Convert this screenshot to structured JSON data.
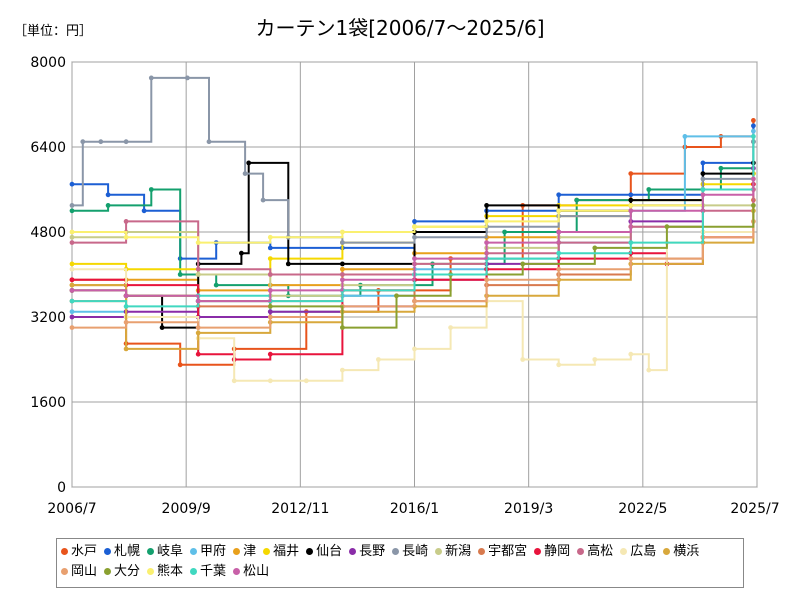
{
  "unit_label": "［単位：円］",
  "chart_data": {
    "type": "line",
    "title": "カーテン1袋[2006/7～2025/6]",
    "xlabel": "",
    "ylabel": "",
    "x_ticks": [
      "2006/7",
      "2009/9",
      "2012/11",
      "2016/1",
      "2019/3",
      "2022/5",
      "2025/7"
    ],
    "y_ticks": [
      0,
      1600,
      3200,
      4800,
      6400,
      8000
    ],
    "ylim": [
      0,
      8000
    ],
    "grid": true,
    "legend_position": "bottom",
    "series": [
      {
        "name": "水戸",
        "color": "#e8541c",
        "x": [
          2006.5,
          2008.0,
          2009.5,
          2011.0,
          2013.0,
          2015.0,
          2017.0,
          2019.0,
          2020.5,
          2022.0,
          2023.5,
          2024.5,
          2025.4
        ],
        "values": [
          3900,
          2700,
          2300,
          2600,
          3300,
          3700,
          4300,
          5300,
          5400,
          5900,
          6400,
          6600,
          6900
        ]
      },
      {
        "name": "札幌",
        "color": "#1c5fd4",
        "x": [
          2006.5,
          2007.5,
          2008.5,
          2009.5,
          2010.5,
          2012.0,
          2014.0,
          2016.0,
          2018.0,
          2020.0,
          2022.0,
          2024.0,
          2025.4
        ],
        "values": [
          5700,
          5500,
          5200,
          4300,
          4600,
          4500,
          4500,
          5000,
          5200,
          5500,
          5500,
          6100,
          6800
        ]
      },
      {
        "name": "岐阜",
        "color": "#14a06e",
        "x": [
          2006.5,
          2007.5,
          2008.7,
          2009.5,
          2010.5,
          2012.5,
          2014.5,
          2016.5,
          2018.5,
          2020.5,
          2022.5,
          2024.5,
          2025.4
        ],
        "values": [
          5200,
          5300,
          5600,
          4000,
          3800,
          3600,
          3800,
          4200,
          4800,
          5400,
          5600,
          6000,
          6500
        ]
      },
      {
        "name": "甲府",
        "color": "#5fbfe8",
        "x": [
          2006.5,
          2008.0,
          2010.0,
          2012.0,
          2014.0,
          2016.0,
          2018.0,
          2020.0,
          2022.0,
          2023.5,
          2025.4
        ],
        "values": [
          3300,
          3200,
          3500,
          3300,
          3600,
          4100,
          4300,
          4600,
          5200,
          6600,
          6700
        ]
      },
      {
        "name": "津",
        "color": "#e8a01c",
        "x": [
          2006.5,
          2008.0,
          2010.0,
          2012.0,
          2014.0,
          2016.0,
          2018.0,
          2020.0,
          2022.0,
          2024.0,
          2025.4
        ],
        "values": [
          3800,
          3900,
          3700,
          3800,
          4100,
          4400,
          4700,
          5100,
          5300,
          5600,
          5900
        ]
      },
      {
        "name": "福井",
        "color": "#f5d800",
        "x": [
          2006.5,
          2008.0,
          2010.0,
          2012.0,
          2014.0,
          2016.0,
          2018.0,
          2020.0,
          2022.0,
          2024.0,
          2025.4
        ],
        "values": [
          4200,
          4100,
          4000,
          4300,
          4600,
          4900,
          5100,
          5300,
          5400,
          5700,
          5900
        ]
      },
      {
        "name": "仙台",
        "color": "#000000",
        "x": [
          2006.5,
          2008.0,
          2009.0,
          2010.0,
          2011.2,
          2011.4,
          2012.5,
          2014.0,
          2016.0,
          2018.0,
          2020.0,
          2022.0,
          2024.0,
          2025.4
        ],
        "values": [
          3700,
          3600,
          3000,
          4200,
          4400,
          6100,
          4200,
          4200,
          4800,
          5300,
          5200,
          5400,
          5900,
          6100
        ]
      },
      {
        "name": "長野",
        "color": "#8a2ca8",
        "x": [
          2006.5,
          2008.0,
          2010.0,
          2012.0,
          2014.0,
          2016.0,
          2018.0,
          2020.0,
          2022.0,
          2024.0,
          2025.4
        ],
        "values": [
          3200,
          3300,
          3200,
          3300,
          3400,
          3900,
          4200,
          4800,
          5000,
          5600,
          6000
        ]
      },
      {
        "name": "長崎",
        "color": "#8a96a8",
        "x": [
          2006.5,
          2006.8,
          2007.3,
          2008.0,
          2008.7,
          2009.7,
          2010.3,
          2011.3,
          2011.8,
          2012.5,
          2014.0,
          2016.0,
          2018.0,
          2020.0,
          2022.0,
          2024.0,
          2025.4
        ],
        "values": [
          5300,
          6500,
          6500,
          6500,
          7700,
          7700,
          6500,
          5900,
          5400,
          4700,
          4600,
          4700,
          4900,
          5100,
          5300,
          5800,
          6500
        ]
      },
      {
        "name": "新潟",
        "color": "#c8cc8a",
        "x": [
          2006.5,
          2008.0,
          2010.0,
          2012.0,
          2014.0,
          2016.0,
          2018.0,
          2020.0,
          2022.0,
          2024.0,
          2025.4
        ],
        "values": [
          4700,
          4800,
          4000,
          3600,
          3800,
          4200,
          4500,
          4700,
          4900,
          5300,
          5600
        ]
      },
      {
        "name": "宇都宮",
        "color": "#d87a4e",
        "x": [
          2006.5,
          2008.0,
          2010.0,
          2012.0,
          2014.0,
          2016.0,
          2018.0,
          2020.0,
          2022.0,
          2024.0,
          2025.4
        ],
        "values": [
          3500,
          3600,
          3400,
          3500,
          3700,
          3500,
          3800,
          4000,
          4300,
          4800,
          5400
        ]
      },
      {
        "name": "静岡",
        "color": "#e8143c",
        "x": [
          2006.5,
          2008.0,
          2010.0,
          2011.0,
          2012.0,
          2014.0,
          2016.0,
          2018.0,
          2020.0,
          2022.0,
          2023.0,
          2024.0,
          2025.4
        ],
        "values": [
          3900,
          3800,
          2500,
          2400,
          2500,
          3700,
          3900,
          4100,
          4300,
          4400,
          4200,
          4700,
          5700
        ]
      },
      {
        "name": "高松",
        "color": "#c8688a",
        "x": [
          2006.5,
          2008.0,
          2010.0,
          2012.0,
          2014.0,
          2016.0,
          2018.0,
          2020.0,
          2022.0,
          2024.0,
          2025.4
        ],
        "values": [
          4600,
          5000,
          4100,
          4000,
          4000,
          4200,
          4400,
          4600,
          4900,
          5200,
          5600
        ]
      },
      {
        "name": "広島",
        "color": "#f5e8b4",
        "x": [
          2006.5,
          2008.0,
          2010.0,
          2011.0,
          2012.0,
          2013.0,
          2014.0,
          2015.0,
          2016.0,
          2017.0,
          2018.0,
          2019.0,
          2020.0,
          2021.0,
          2022.0,
          2022.5,
          2023.0,
          2024.0,
          2025.4
        ],
        "values": [
          4100,
          3200,
          2800,
          2000,
          2000,
          2000,
          2200,
          2400,
          2600,
          3000,
          3500,
          2400,
          2300,
          2400,
          2500,
          2200,
          4600,
          4800,
          5000
        ]
      },
      {
        "name": "横浜",
        "color": "#d8a83c",
        "x": [
          2006.5,
          2008.0,
          2010.0,
          2012.0,
          2014.0,
          2016.0,
          2018.0,
          2020.0,
          2022.0,
          2024.0,
          2025.4
        ],
        "values": [
          3800,
          2600,
          2900,
          3100,
          3300,
          3400,
          3600,
          3900,
          4200,
          4600,
          5200
        ]
      },
      {
        "name": "岡山",
        "color": "#e8a070",
        "x": [
          2006.5,
          2008.0,
          2010.0,
          2012.0,
          2014.0,
          2016.0,
          2018.0,
          2020.0,
          2022.0,
          2024.0,
          2025.4
        ],
        "values": [
          3000,
          3100,
          3000,
          3200,
          3400,
          3500,
          3900,
          4100,
          4300,
          4700,
          5000
        ]
      },
      {
        "name": "大分",
        "color": "#8aa030",
        "x": [
          2006.5,
          2008.0,
          2010.0,
          2012.0,
          2014.0,
          2015.5,
          2017.0,
          2019.0,
          2021.0,
          2023.0,
          2025.4
        ],
        "values": [
          3700,
          3600,
          3500,
          3400,
          3000,
          3600,
          4000,
          4200,
          4500,
          4900,
          5300
        ]
      },
      {
        "name": "熊本",
        "color": "#faf070",
        "x": [
          2006.5,
          2008.0,
          2010.0,
          2012.0,
          2014.0,
          2016.0,
          2018.0,
          2020.0,
          2022.0,
          2024.0,
          2025.4
        ],
        "values": [
          4800,
          4700,
          4600,
          4700,
          4800,
          4900,
          5000,
          5200,
          5300,
          5600,
          5800
        ]
      },
      {
        "name": "千葉",
        "color": "#40d8c0",
        "x": [
          2006.5,
          2008.0,
          2010.0,
          2012.0,
          2014.0,
          2016.0,
          2018.0,
          2020.0,
          2022.0,
          2024.0,
          2025.4
        ],
        "values": [
          3500,
          3400,
          3600,
          3500,
          3700,
          4000,
          4300,
          4400,
          4600,
          5600,
          6600
        ]
      },
      {
        "name": "松山",
        "color": "#c860a8",
        "x": [
          2006.5,
          2008.0,
          2010.0,
          2012.0,
          2014.0,
          2016.0,
          2018.0,
          2020.0,
          2022.0,
          2024.0,
          2025.4
        ],
        "values": [
          3700,
          3600,
          3500,
          3700,
          3900,
          4300,
          4600,
          4800,
          5200,
          5500,
          5800
        ]
      }
    ]
  }
}
